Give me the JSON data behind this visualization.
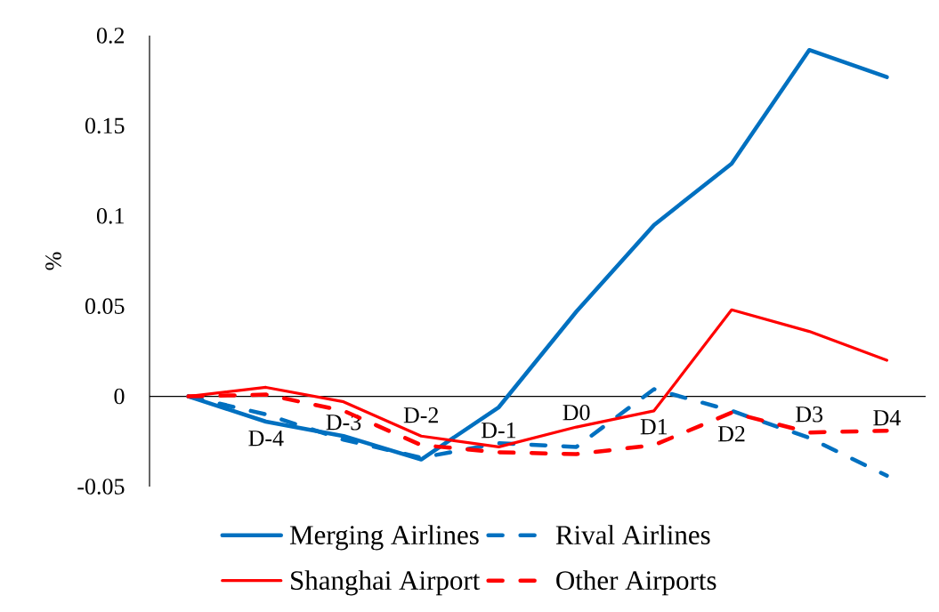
{
  "chart_data": {
    "type": "line",
    "ylabel": "%",
    "categories": [
      null,
      "D-4",
      "D-3",
      "D-2",
      "D-1",
      "D0",
      "D1",
      "D2",
      "D3",
      "D4"
    ],
    "series": [
      {
        "name": "Merging Airlines",
        "color": "#0070c0",
        "line_style": "solid",
        "values": [
          0,
          -0.014,
          -0.022,
          -0.035,
          -0.006,
          0.047,
          0.095,
          0.129,
          0.192,
          0.177
        ]
      },
      {
        "name": "Rival Airlines",
        "color": "#0070c0",
        "line_style": "dashed",
        "values": [
          0,
          -0.01,
          -0.024,
          -0.034,
          -0.026,
          -0.028,
          0.004,
          -0.008,
          -0.023,
          -0.044
        ]
      },
      {
        "name": "Shanghai Airport",
        "color": "#ff0000",
        "line_style": "solid",
        "values": [
          0,
          0.005,
          -0.003,
          -0.022,
          -0.028,
          -0.017,
          -0.008,
          0.048,
          0.036,
          0.02
        ]
      },
      {
        "name": "Other Airports",
        "color": "#ff0000",
        "line_style": "dashed",
        "values": [
          0,
          0.001,
          -0.008,
          -0.027,
          -0.031,
          -0.032,
          -0.027,
          -0.009,
          -0.02,
          -0.019
        ]
      }
    ],
    "ylim": [
      -0.05,
      0.2
    ],
    "yticks": [
      -0.05,
      0,
      0.05,
      0.1,
      0.15,
      0.2
    ],
    "legend": "bottom"
  }
}
